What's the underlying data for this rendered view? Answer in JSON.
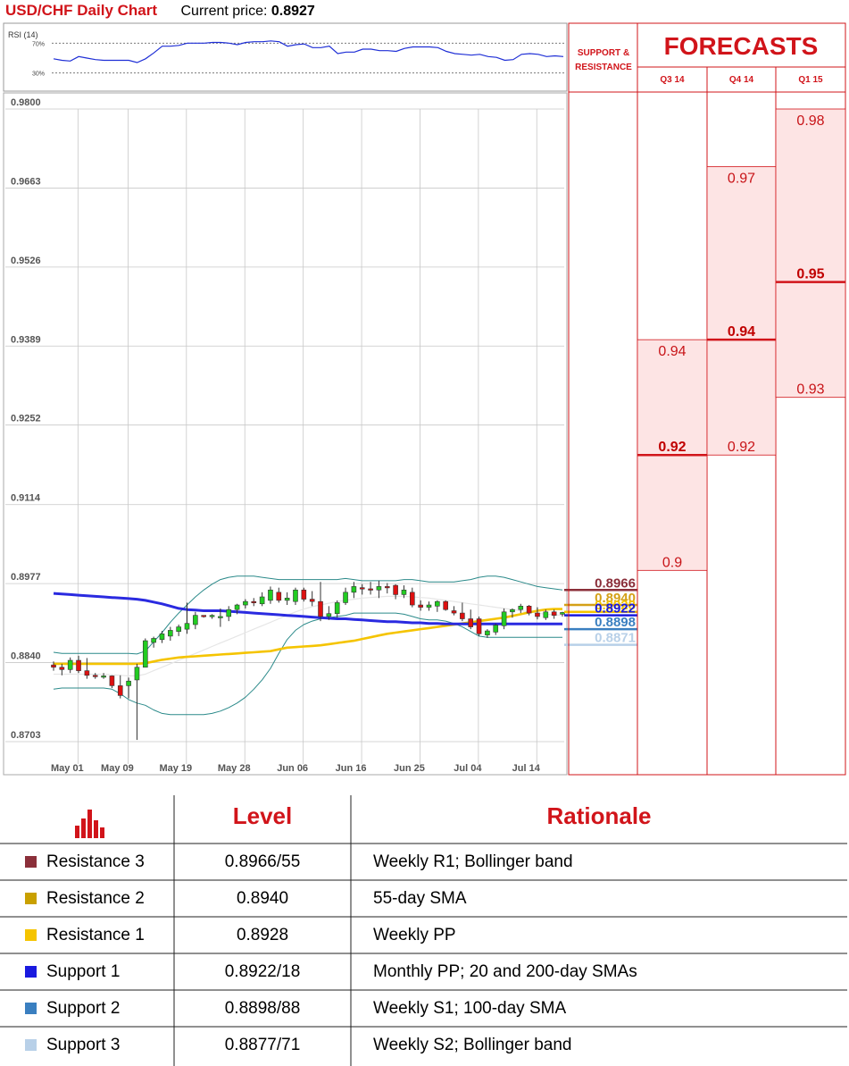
{
  "header": {
    "title": "USD/CHF Daily Chart",
    "price_label": "Current price:",
    "price_value": "0.8927"
  },
  "rsi": {
    "label": "RSI (14)",
    "ticks": [
      "70%",
      "30%"
    ],
    "tick_values": [
      70,
      30
    ],
    "values": [
      49,
      47,
      46,
      52,
      50,
      48,
      47,
      47,
      47,
      47,
      44,
      49,
      57,
      66,
      66,
      67,
      70,
      70,
      70,
      71,
      71,
      70,
      68,
      71,
      72,
      72,
      73,
      72,
      66,
      68,
      69,
      64,
      64,
      66,
      56,
      58,
      58,
      62,
      62,
      60,
      60,
      59,
      63,
      65,
      65,
      65,
      64,
      59,
      56,
      55,
      54,
      55,
      52,
      51,
      47,
      48,
      55,
      56,
      55,
      52,
      53,
      52
    ],
    "color": "#1f2fd6"
  },
  "chart_data": {
    "type": "candlestick",
    "title": "USD/CHF Daily Chart",
    "y_ticks": [
      0.98,
      0.9663,
      0.9526,
      0.9389,
      0.9252,
      0.9114,
      0.8977,
      0.884,
      0.8703
    ],
    "y_tick_labels": [
      "0.9800",
      "0.9663",
      "0.9526",
      "0.9389",
      "0.9252",
      "0.9114",
      "0.8977",
      "0.8840",
      "0.8703"
    ],
    "ylim": [
      0.8703,
      0.98
    ],
    "x_tick_labels": [
      "May 01",
      "May 09",
      "May 19",
      "May 28",
      "Jun 06",
      "Jun 16",
      "Jun 25",
      "Jul 04",
      "Jul 14"
    ],
    "x_tick_index": [
      1,
      7,
      14,
      21,
      28,
      35,
      42,
      49,
      56
    ],
    "grid": true,
    "candles": [
      {
        "o": 0.8836,
        "h": 0.8842,
        "l": 0.8826,
        "c": 0.8832
      },
      {
        "o": 0.8832,
        "h": 0.8838,
        "l": 0.8818,
        "c": 0.8828
      },
      {
        "o": 0.8828,
        "h": 0.8849,
        "l": 0.8822,
        "c": 0.8844
      },
      {
        "o": 0.8844,
        "h": 0.8852,
        "l": 0.8822,
        "c": 0.8826
      },
      {
        "o": 0.8826,
        "h": 0.8848,
        "l": 0.8812,
        "c": 0.8818
      },
      {
        "o": 0.8818,
        "h": 0.8822,
        "l": 0.8812,
        "c": 0.8817
      },
      {
        "o": 0.8817,
        "h": 0.8822,
        "l": 0.8812,
        "c": 0.8817
      },
      {
        "o": 0.8817,
        "h": 0.8818,
        "l": 0.8796,
        "c": 0.88
      },
      {
        "o": 0.88,
        "h": 0.8818,
        "l": 0.8778,
        "c": 0.8783
      },
      {
        "o": 0.88,
        "h": 0.8814,
        "l": 0.8778,
        "c": 0.8808
      },
      {
        "o": 0.881,
        "h": 0.8838,
        "l": 0.8706,
        "c": 0.8832
      },
      {
        "o": 0.8832,
        "h": 0.8882,
        "l": 0.8832,
        "c": 0.8878
      },
      {
        "o": 0.8875,
        "h": 0.8885,
        "l": 0.8866,
        "c": 0.8882
      },
      {
        "o": 0.888,
        "h": 0.8895,
        "l": 0.8874,
        "c": 0.889
      },
      {
        "o": 0.8886,
        "h": 0.8902,
        "l": 0.8878,
        "c": 0.8896
      },
      {
        "o": 0.8894,
        "h": 0.8906,
        "l": 0.8886,
        "c": 0.8902
      },
      {
        "o": 0.8898,
        "h": 0.8944,
        "l": 0.889,
        "c": 0.8908
      },
      {
        "o": 0.8906,
        "h": 0.8928,
        "l": 0.8898,
        "c": 0.8922
      },
      {
        "o": 0.8922,
        "h": 0.8922,
        "l": 0.8918,
        "c": 0.892
      },
      {
        "o": 0.892,
        "h": 0.8924,
        "l": 0.8916,
        "c": 0.8922
      },
      {
        "o": 0.8918,
        "h": 0.8934,
        "l": 0.8902,
        "c": 0.892
      },
      {
        "o": 0.892,
        "h": 0.8938,
        "l": 0.8912,
        "c": 0.8932
      },
      {
        "o": 0.8932,
        "h": 0.8942,
        "l": 0.8924,
        "c": 0.894
      },
      {
        "o": 0.894,
        "h": 0.895,
        "l": 0.8934,
        "c": 0.8946
      },
      {
        "o": 0.8946,
        "h": 0.8952,
        "l": 0.8938,
        "c": 0.8945
      },
      {
        "o": 0.8942,
        "h": 0.8962,
        "l": 0.8938,
        "c": 0.8954
      },
      {
        "o": 0.8948,
        "h": 0.8972,
        "l": 0.8942,
        "c": 0.8966
      },
      {
        "o": 0.8962,
        "h": 0.897,
        "l": 0.8944,
        "c": 0.8948
      },
      {
        "o": 0.8948,
        "h": 0.8962,
        "l": 0.894,
        "c": 0.8952
      },
      {
        "o": 0.8946,
        "h": 0.897,
        "l": 0.894,
        "c": 0.8966
      },
      {
        "o": 0.8966,
        "h": 0.897,
        "l": 0.8946,
        "c": 0.895
      },
      {
        "o": 0.895,
        "h": 0.8964,
        "l": 0.8938,
        "c": 0.8946
      },
      {
        "o": 0.8946,
        "h": 0.898,
        "l": 0.8912,
        "c": 0.892
      },
      {
        "o": 0.892,
        "h": 0.8938,
        "l": 0.8914,
        "c": 0.8925
      },
      {
        "o": 0.8925,
        "h": 0.8948,
        "l": 0.8918,
        "c": 0.8944
      },
      {
        "o": 0.8944,
        "h": 0.897,
        "l": 0.894,
        "c": 0.8962
      },
      {
        "o": 0.8962,
        "h": 0.898,
        "l": 0.8952,
        "c": 0.8972
      },
      {
        "o": 0.897,
        "h": 0.8976,
        "l": 0.8958,
        "c": 0.8968
      },
      {
        "o": 0.8968,
        "h": 0.898,
        "l": 0.8958,
        "c": 0.8966
      },
      {
        "o": 0.8966,
        "h": 0.8982,
        "l": 0.8952,
        "c": 0.8972
      },
      {
        "o": 0.8972,
        "h": 0.8978,
        "l": 0.896,
        "c": 0.897
      },
      {
        "o": 0.8974,
        "h": 0.8976,
        "l": 0.895,
        "c": 0.8958
      },
      {
        "o": 0.8958,
        "h": 0.8974,
        "l": 0.8952,
        "c": 0.8966
      },
      {
        "o": 0.8962,
        "h": 0.897,
        "l": 0.8936,
        "c": 0.894
      },
      {
        "o": 0.894,
        "h": 0.8948,
        "l": 0.893,
        "c": 0.8936
      },
      {
        "o": 0.8936,
        "h": 0.8946,
        "l": 0.893,
        "c": 0.894
      },
      {
        "o": 0.8938,
        "h": 0.8948,
        "l": 0.8928,
        "c": 0.8946
      },
      {
        "o": 0.8946,
        "h": 0.8948,
        "l": 0.893,
        "c": 0.8932
      },
      {
        "o": 0.893,
        "h": 0.8938,
        "l": 0.8922,
        "c": 0.8926
      },
      {
        "o": 0.8926,
        "h": 0.8944,
        "l": 0.8912,
        "c": 0.8916
      },
      {
        "o": 0.8916,
        "h": 0.8932,
        "l": 0.8898,
        "c": 0.8902
      },
      {
        "o": 0.8916,
        "h": 0.892,
        "l": 0.8886,
        "c": 0.889
      },
      {
        "o": 0.8888,
        "h": 0.8898,
        "l": 0.8883,
        "c": 0.8895
      },
      {
        "o": 0.8893,
        "h": 0.8908,
        "l": 0.8888,
        "c": 0.8905
      },
      {
        "o": 0.8904,
        "h": 0.8934,
        "l": 0.8898,
        "c": 0.8928
      },
      {
        "o": 0.8928,
        "h": 0.8934,
        "l": 0.8918,
        "c": 0.8932
      },
      {
        "o": 0.8932,
        "h": 0.8942,
        "l": 0.8926,
        "c": 0.8938
      },
      {
        "o": 0.8938,
        "h": 0.894,
        "l": 0.8922,
        "c": 0.8926
      },
      {
        "o": 0.8926,
        "h": 0.8936,
        "l": 0.8915,
        "c": 0.892
      },
      {
        "o": 0.8918,
        "h": 0.8932,
        "l": 0.8914,
        "c": 0.8928
      },
      {
        "o": 0.8928,
        "h": 0.8932,
        "l": 0.8916,
        "c": 0.8922
      },
      {
        "o": 0.8924,
        "h": 0.8928,
        "l": 0.892,
        "c": 0.8927
      }
    ],
    "sma200": [
      0.896,
      0.8959,
      0.8958,
      0.8957,
      0.8956,
      0.8955,
      0.8954,
      0.8953,
      0.8952,
      0.8951,
      0.895,
      0.8948,
      0.8945,
      0.8942,
      0.8938,
      0.8934,
      0.8932,
      0.8931,
      0.893,
      0.893,
      0.893,
      0.8929,
      0.8928,
      0.8927,
      0.8926,
      0.8925,
      0.8924,
      0.8923,
      0.8922,
      0.8921,
      0.892,
      0.8919,
      0.8918,
      0.8917,
      0.8916,
      0.8916,
      0.8915,
      0.8914,
      0.8913,
      0.8912,
      0.8911,
      0.8911,
      0.891,
      0.8909,
      0.8909,
      0.8908,
      0.8908,
      0.8907,
      0.8907,
      0.8907,
      0.8907,
      0.8907,
      0.8907,
      0.8907,
      0.8907,
      0.8907,
      0.8907,
      0.8907,
      0.8907,
      0.8907,
      0.8907,
      0.8907
    ],
    "sma55": [
      0.8838,
      0.8838,
      0.8838,
      0.8838,
      0.8838,
      0.8838,
      0.8838,
      0.8838,
      0.8838,
      0.8838,
      0.8838,
      0.8839,
      0.8842,
      0.8845,
      0.8847,
      0.8849,
      0.885,
      0.8851,
      0.8852,
      0.8853,
      0.8854,
      0.8855,
      0.8856,
      0.8857,
      0.8858,
      0.8859,
      0.886,
      0.8863,
      0.8866,
      0.8867,
      0.8868,
      0.8869,
      0.887,
      0.8872,
      0.8874,
      0.8876,
      0.8878,
      0.8881,
      0.8884,
      0.8887,
      0.889,
      0.8892,
      0.8894,
      0.8896,
      0.8898,
      0.89,
      0.8902,
      0.8904,
      0.8906,
      0.8908,
      0.891,
      0.8912,
      0.8914,
      0.8916,
      0.8918,
      0.8921,
      0.8924,
      0.8927,
      0.893,
      0.8932,
      0.8933,
      0.8933
    ],
    "bb_upper": [
      0.8858,
      0.8856,
      0.8856,
      0.8856,
      0.8856,
      0.8856,
      0.8856,
      0.8856,
      0.8856,
      0.8856,
      0.8855,
      0.886,
      0.8876,
      0.8892,
      0.891,
      0.8926,
      0.894,
      0.8954,
      0.8966,
      0.8976,
      0.8984,
      0.8988,
      0.899,
      0.899,
      0.899,
      0.8988,
      0.8986,
      0.8984,
      0.8984,
      0.8984,
      0.8984,
      0.8984,
      0.8984,
      0.8984,
      0.8984,
      0.8986,
      0.8984,
      0.8982,
      0.8982,
      0.8982,
      0.8982,
      0.8982,
      0.8984,
      0.8984,
      0.8982,
      0.898,
      0.898,
      0.898,
      0.898,
      0.8982,
      0.8984,
      0.8988,
      0.899,
      0.899,
      0.8988,
      0.8984,
      0.898,
      0.8976,
      0.8972,
      0.897,
      0.8968,
      0.8966
    ],
    "bb_lower": [
      0.8794,
      0.8796,
      0.8796,
      0.8796,
      0.8796,
      0.8796,
      0.8796,
      0.8794,
      0.8786,
      0.8776,
      0.877,
      0.8766,
      0.8758,
      0.8752,
      0.875,
      0.875,
      0.875,
      0.875,
      0.875,
      0.8752,
      0.8756,
      0.8762,
      0.877,
      0.878,
      0.8794,
      0.881,
      0.883,
      0.8856,
      0.888,
      0.8896,
      0.8906,
      0.8912,
      0.8916,
      0.8918,
      0.892,
      0.8922,
      0.8926,
      0.8926,
      0.8926,
      0.8926,
      0.8926,
      0.8926,
      0.8924,
      0.892,
      0.8916,
      0.8914,
      0.8914,
      0.8912,
      0.8908,
      0.8902,
      0.8894,
      0.8886,
      0.8884,
      0.8884,
      0.8884,
      0.8884,
      0.8884,
      0.8884,
      0.8884,
      0.8884,
      0.8884,
      0.8884
    ],
    "sma20": [
      0.882,
      0.882,
      0.882,
      0.882,
      0.882,
      0.882,
      0.882,
      0.8819,
      0.8818,
      0.8817,
      0.8817,
      0.882,
      0.8826,
      0.8832,
      0.8838,
      0.8844,
      0.885,
      0.8856,
      0.8862,
      0.8868,
      0.8874,
      0.888,
      0.8886,
      0.8892,
      0.8898,
      0.8904,
      0.891,
      0.8916,
      0.8922,
      0.8928,
      0.8933,
      0.8937,
      0.894,
      0.8943,
      0.8946,
      0.8948,
      0.895,
      0.8952,
      0.8953,
      0.8954,
      0.8955,
      0.8955,
      0.8955,
      0.8954,
      0.8953,
      0.8952,
      0.895,
      0.8948,
      0.8946,
      0.8944,
      0.8942,
      0.894,
      0.8938,
      0.8936,
      0.8934,
      0.8932,
      0.893,
      0.8928,
      0.8926,
      0.8924,
      0.8923,
      0.8922
    ],
    "levels": [
      {
        "name": "Resistance 3",
        "value": 0.8966,
        "label": "0.8966",
        "color": "#8b2f3a"
      },
      {
        "name": "Resistance 2",
        "value": 0.894,
        "label": "0.8940",
        "color": "#d4a017"
      },
      {
        "name": "Resistance 1",
        "value": 0.8928,
        "label": "0.8928",
        "color": "#f5c400"
      },
      {
        "name": "Support 1",
        "value": 0.8922,
        "label": "0.8922",
        "color": "#1a1adf"
      },
      {
        "name": "Support 2",
        "value": 0.8898,
        "label": "0.8898",
        "color": "#3a7fc0"
      },
      {
        "name": "Support 3",
        "value": 0.8871,
        "label": "0.8871",
        "color": "#b8d0e8"
      }
    ],
    "colors": {
      "up": "#22cc22",
      "down": "#dd1111",
      "sma200": "#2a2ae0",
      "sma55": "#f5c400",
      "bollinger": "#2b8a8a"
    }
  },
  "forecasts": {
    "title": "FORECASTS",
    "sr_label_1": "SUPPORT &",
    "sr_label_2": "RESISTANCE",
    "columns": [
      {
        "label": "Q3 14",
        "high": 0.94,
        "high_label": "0.94",
        "mid": 0.92,
        "mid_label": "0.92",
        "low": 0.9,
        "low_label": "0.9"
      },
      {
        "label": "Q4 14",
        "high": 0.97,
        "high_label": "0.97",
        "mid": 0.94,
        "mid_label": "0.94",
        "low": 0.92,
        "low_label": "0.92"
      },
      {
        "label": "Q1 15",
        "high": 0.98,
        "high_label": "0.98",
        "mid": 0.95,
        "mid_label": "0.95",
        "low": 0.93,
        "low_label": "0.93"
      }
    ]
  },
  "table": {
    "headers": {
      "level": "Level",
      "rationale": "Rationale"
    },
    "rows": [
      {
        "name": "Resistance 3",
        "level": "0.8966/55",
        "rationale": "Weekly R1; Bollinger band",
        "color": "#8b2f3a"
      },
      {
        "name": "Resistance 2",
        "level": "0.8940",
        "rationale": "55-day SMA",
        "color": "#c9a000"
      },
      {
        "name": "Resistance 1",
        "level": "0.8928",
        "rationale": "Weekly PP",
        "color": "#f5c400"
      },
      {
        "name": "Support 1",
        "level": "0.8922/18",
        "rationale": "Monthly PP; 20 and 200-day SMAs",
        "color": "#1a1adf"
      },
      {
        "name": "Support 2",
        "level": "0.8898/88",
        "rationale": "Weekly S1; 100-day SMA",
        "color": "#3a7fc0"
      },
      {
        "name": "Support 3",
        "level": "0.8877/71",
        "rationale": "Weekly S2; Bollinger band",
        "color": "#b8d0e8"
      }
    ]
  }
}
